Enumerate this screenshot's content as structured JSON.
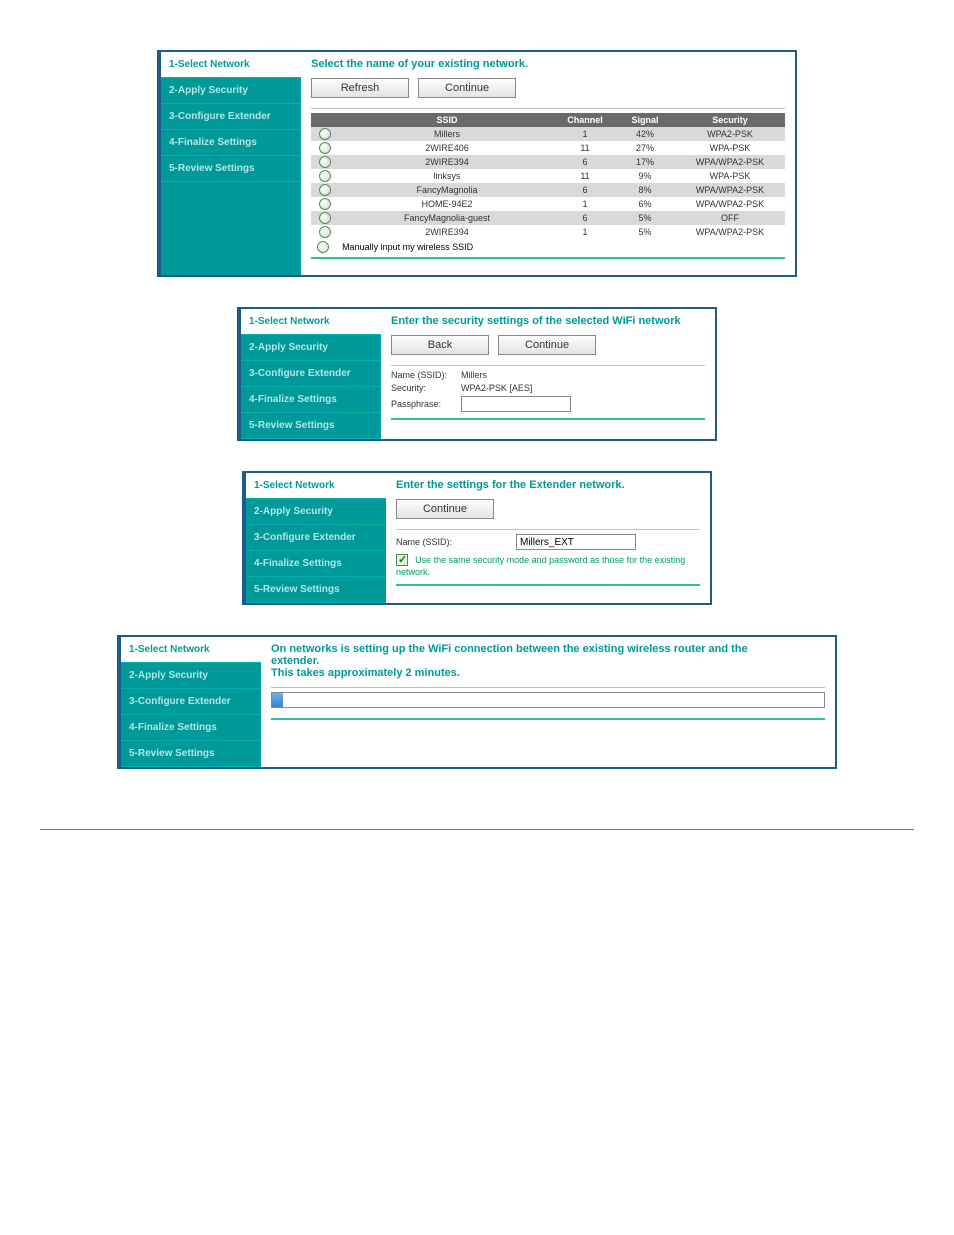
{
  "sidebar_items": [
    "1-Select Network",
    "2-Apply Security",
    "3-Configure Extender",
    "4-Finalize Settings",
    "5-Review Settings"
  ],
  "panel1": {
    "heading": "Select the name of your existing network.",
    "btn_refresh": "Refresh",
    "btn_continue": "Continue",
    "columns": {
      "ssid": "SSID",
      "channel": "Channel",
      "signal": "Signal",
      "security": "Security"
    },
    "rows": [
      {
        "ssid": "Millers",
        "channel": "1",
        "signal": "42%",
        "security": "WPA2-PSK",
        "alt": true
      },
      {
        "ssid": "2WIRE406",
        "channel": "11",
        "signal": "27%",
        "security": "WPA-PSK",
        "alt": false
      },
      {
        "ssid": "2WIRE394",
        "channel": "6",
        "signal": "17%",
        "security": "WPA/WPA2-PSK",
        "alt": true
      },
      {
        "ssid": "linksys",
        "channel": "11",
        "signal": "9%",
        "security": "WPA-PSK",
        "alt": false
      },
      {
        "ssid": "FancyMagnolia",
        "channel": "6",
        "signal": "8%",
        "security": "WPA/WPA2-PSK",
        "alt": true
      },
      {
        "ssid": "HOME-94E2",
        "channel": "1",
        "signal": "6%",
        "security": "WPA/WPA2-PSK",
        "alt": false
      },
      {
        "ssid": "FancyMagnolia-guest",
        "channel": "6",
        "signal": "5%",
        "security": "OFF",
        "alt": true
      },
      {
        "ssid": "2WIRE394",
        "channel": "1",
        "signal": "5%",
        "security": "WPA/WPA2-PSK",
        "alt": false
      }
    ],
    "manual_label": "Manually input my wireless SSID"
  },
  "panel2": {
    "heading": "Enter the security settings of the selected WiFi network",
    "btn_back": "Back",
    "btn_continue": "Continue",
    "name_label": "Name (SSID):",
    "name_value": "Millers",
    "security_label": "Security:",
    "security_value": "WPA2-PSK [AES]",
    "pass_label": "Passphrase:"
  },
  "panel3": {
    "heading": "Enter the settings for the Extender network.",
    "btn_continue": "Continue",
    "name_label": "Name (SSID):",
    "name_value": "Millers_EXT",
    "checkbox_label": "Use the same security mode and password as those for the existing network."
  },
  "panel4": {
    "heading_l1": "On networks is setting up the WiFi connection between the existing wireless router and the",
    "heading_l2": "extender.",
    "heading_l3": "This takes approximately 2 minutes."
  }
}
